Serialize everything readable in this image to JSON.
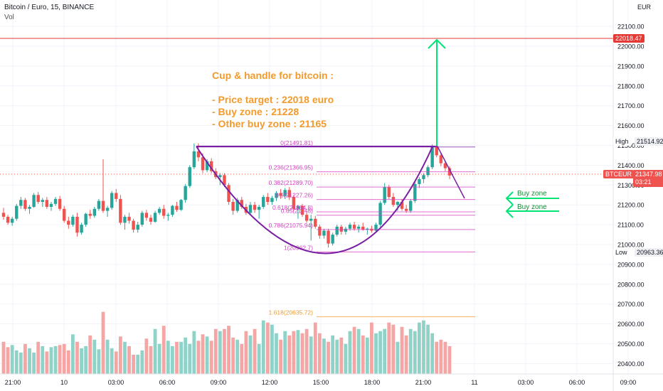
{
  "header": {
    "symbol_line": "Bitcoin / Euro, 15, BINANCE",
    "volume_label": "Vol"
  },
  "currency_label": "EUR",
  "note": {
    "title": "Cup & handle for bitcoin :",
    "lines": [
      "- Price target : 22018 euro",
      "- Buy zone : 21228",
      "- Other buy zone : 21165"
    ]
  },
  "price_tags": {
    "target": "22018.47",
    "high_label": "High",
    "high_value": "21514.92",
    "symbol": "BTCEUR",
    "last": "21347.98",
    "countdown": "03:21",
    "low_label": "Low",
    "low_value": "20963.36"
  },
  "annotations": {
    "buy_zone_1": "Buy zone",
    "buy_zone_2": "Buy zone"
  },
  "colors": {
    "up": "#26a69a",
    "down": "#ef5350",
    "vol_up": "#8fd3c8",
    "vol_down": "#f5a5a3",
    "fib": "#d63fc1",
    "fib_ext": "#f29b2c",
    "cup": "#7b1fa2",
    "target_line": "#e53935",
    "arrow": "#00e676"
  },
  "chart_data": {
    "type": "candlestick",
    "y_axis": {
      "ylim": [
        20350,
        22200
      ],
      "ticks": [
        20400,
        20500,
        20600,
        20700,
        20800,
        20900,
        21000,
        21100,
        21200,
        21300,
        21400,
        21500,
        21600,
        21700,
        21800,
        21900,
        22000,
        22100
      ],
      "tick_labels": [
        "20400.00",
        "20500.00",
        "20600.00",
        "20700.00",
        "20800.00",
        "20900.00",
        "21000.00",
        "21100.00",
        "21200.00",
        "21300.00",
        "21400.00",
        "21500.00",
        "21600.00",
        "21700.00",
        "21800.00",
        "21900.00",
        "22000.00",
        "22100.00"
      ]
    },
    "x_axis": {
      "tick_labels": [
        "21:00",
        "10",
        "03:00",
        "06:00",
        "09:00",
        "12:00",
        "15:00",
        "18:00",
        "21:00",
        "11",
        "03:00",
        "06:00",
        "09:00"
      ]
    },
    "fib_levels": [
      {
        "ratio": "0",
        "price": 21491.81,
        "label": "0(21491.81)"
      },
      {
        "ratio": "0.236",
        "price": 21366.95,
        "label": "0.236(21366.95)"
      },
      {
        "ratio": "0.382",
        "price": 21289.7,
        "label": "0.382(21289.70)"
      },
      {
        "ratio": "0.5",
        "price": 21227.26,
        "label": "0.5(21227.26)"
      },
      {
        "ratio": "0.618",
        "price": 21164.8,
        "label": "0.618(21164.8)"
      },
      {
        "ratio": "0.65",
        "price": 21148,
        "label": "0.65(21148)"
      },
      {
        "ratio": "0.786",
        "price": 21075.94,
        "label": "0.786(21075.94)"
      },
      {
        "ratio": "1",
        "price": 20962.7,
        "label": "1(20962.7)"
      },
      {
        "ratio": "1.618",
        "price": 20635.72,
        "label": "1.618(20635.72)"
      }
    ],
    "target_price": 22018.47,
    "high": 21514.92,
    "low": 20963.36,
    "last": 21347.98,
    "candles": [
      [
        21160,
        21185,
        21125,
        21140
      ],
      [
        21140,
        21150,
        21100,
        21110
      ],
      [
        21110,
        21140,
        21095,
        21130
      ],
      [
        21130,
        21205,
        21120,
        21195
      ],
      [
        21195,
        21240,
        21180,
        21225
      ],
      [
        21225,
        21235,
        21170,
        21180
      ],
      [
        21180,
        21200,
        21155,
        21190
      ],
      [
        21190,
        21260,
        21185,
        21250
      ],
      [
        21250,
        21265,
        21205,
        21215
      ],
      [
        21215,
        21235,
        21190,
        21225
      ],
      [
        21225,
        21240,
        21180,
        21190
      ],
      [
        21190,
        21215,
        21170,
        21205
      ],
      [
        21205,
        21240,
        21195,
        21230
      ],
      [
        21230,
        21245,
        21170,
        21180
      ],
      [
        21180,
        21195,
        21110,
        21120
      ],
      [
        21120,
        21140,
        21080,
        21100
      ],
      [
        21100,
        21150,
        21090,
        21140
      ],
      [
        21140,
        21160,
        21040,
        21060
      ],
      [
        21060,
        21110,
        21050,
        21100
      ],
      [
        21100,
        21160,
        21090,
        21155
      ],
      [
        21155,
        21175,
        21130,
        21145
      ],
      [
        21145,
        21190,
        21135,
        21180
      ],
      [
        21180,
        21230,
        21170,
        21220
      ],
      [
        21220,
        21430,
        21160,
        21170
      ],
      [
        21170,
        21195,
        21140,
        21185
      ],
      [
        21185,
        21270,
        21175,
        21260
      ],
      [
        21260,
        21280,
        21215,
        21230
      ],
      [
        21230,
        21250,
        21100,
        21110
      ],
      [
        21110,
        21150,
        21075,
        21140
      ],
      [
        21140,
        21160,
        21105,
        21120
      ],
      [
        21120,
        21130,
        21060,
        21075
      ],
      [
        21075,
        21115,
        21060,
        21100
      ],
      [
        21100,
        21170,
        21090,
        21160
      ],
      [
        21160,
        21175,
        21120,
        21135
      ],
      [
        21135,
        21150,
        21100,
        21115
      ],
      [
        21115,
        21170,
        21110,
        21160
      ],
      [
        21160,
        21190,
        21150,
        21180
      ],
      [
        21180,
        21200,
        21130,
        21145
      ],
      [
        21145,
        21160,
        21120,
        21150
      ],
      [
        21150,
        21200,
        21140,
        21195
      ],
      [
        21195,
        21215,
        21165,
        21175
      ],
      [
        21175,
        21230,
        21170,
        21225
      ],
      [
        21225,
        21305,
        21210,
        21295
      ],
      [
        21295,
        21400,
        21285,
        21390
      ],
      [
        21390,
        21510,
        21380,
        21470
      ],
      [
        21470,
        21510,
        21420,
        21440
      ],
      [
        21440,
        21460,
        21360,
        21375
      ],
      [
        21375,
        21430,
        21365,
        21420
      ],
      [
        21420,
        21435,
        21360,
        21370
      ],
      [
        21370,
        21385,
        21330,
        21340
      ],
      [
        21340,
        21360,
        21300,
        21350
      ],
      [
        21350,
        21360,
        21290,
        21300
      ],
      [
        21300,
        21310,
        21200,
        21215
      ],
      [
        21215,
        21230,
        21150,
        21170
      ],
      [
        21170,
        21235,
        21160,
        21225
      ],
      [
        21225,
        21240,
        21180,
        21190
      ],
      [
        21190,
        21205,
        21150,
        21160
      ],
      [
        21160,
        21215,
        21150,
        21200
      ],
      [
        21200,
        21215,
        21160,
        21175
      ],
      [
        21175,
        21200,
        21130,
        21190
      ],
      [
        21190,
        21250,
        21180,
        21240
      ],
      [
        21240,
        21260,
        21200,
        21215
      ],
      [
        21215,
        21245,
        21200,
        21235
      ],
      [
        21235,
        21270,
        21220,
        21260
      ],
      [
        21260,
        21280,
        21230,
        21245
      ],
      [
        21245,
        21285,
        21230,
        21275
      ],
      [
        21275,
        21290,
        21225,
        21240
      ],
      [
        21240,
        21250,
        21170,
        21180
      ],
      [
        21180,
        21200,
        21130,
        21195
      ],
      [
        21195,
        21205,
        21140,
        21150
      ],
      [
        21150,
        21170,
        21110,
        21120
      ],
      [
        21120,
        21150,
        21020,
        21130
      ],
      [
        21130,
        21145,
        21080,
        21090
      ],
      [
        21090,
        21100,
        21030,
        21045
      ],
      [
        21045,
        21080,
        21030,
        21070
      ],
      [
        21070,
        21080,
        20985,
        21005
      ],
      [
        21005,
        21060,
        20995,
        21050
      ],
      [
        21050,
        21100,
        21040,
        21090
      ],
      [
        21090,
        21100,
        21050,
        21065
      ],
      [
        21065,
        21090,
        21050,
        21080
      ],
      [
        21080,
        21110,
        21070,
        21100
      ],
      [
        21100,
        21115,
        21070,
        21080
      ],
      [
        21080,
        21100,
        21060,
        21090
      ],
      [
        21090,
        21110,
        21070,
        21075
      ],
      [
        21075,
        21085,
        21050,
        21080
      ],
      [
        21080,
        21095,
        21060,
        21070
      ],
      [
        21070,
        21110,
        21060,
        21100
      ],
      [
        21100,
        21220,
        21090,
        21210
      ],
      [
        21210,
        21310,
        21200,
        21290
      ],
      [
        21290,
        21300,
        21230,
        21240
      ],
      [
        21240,
        21260,
        21190,
        21200
      ],
      [
        21200,
        21220,
        21170,
        21215
      ],
      [
        21215,
        21230,
        21170,
        21180
      ],
      [
        21180,
        21200,
        21160,
        21170
      ],
      [
        21170,
        21230,
        21160,
        21220
      ],
      [
        21220,
        21320,
        21210,
        21305
      ],
      [
        21305,
        21340,
        21285,
        21330
      ],
      [
        21330,
        21360,
        21310,
        21350
      ],
      [
        21350,
        21400,
        21340,
        21390
      ],
      [
        21390,
        21505,
        21380,
        21495
      ],
      [
        21495,
        21510,
        21440,
        21450
      ],
      [
        21450,
        21460,
        21395,
        21410
      ],
      [
        21410,
        21420,
        21370,
        21385
      ],
      [
        21385,
        21395,
        21330,
        21348
      ]
    ],
    "volumes": [
      30,
      25,
      27,
      22,
      20,
      28,
      24,
      20,
      30,
      26,
      21,
      25,
      26,
      27,
      28,
      22,
      37,
      30,
      24,
      26,
      36,
      32,
      23,
      58,
      32,
      24,
      21,
      35,
      30,
      26,
      18,
      18,
      22,
      33,
      26,
      42,
      28,
      45,
      31,
      26,
      30,
      30,
      34,
      28,
      40,
      31,
      37,
      35,
      31,
      42,
      40,
      42,
      45,
      34,
      32,
      28,
      40,
      36,
      42,
      28,
      50,
      48,
      46,
      38,
      32,
      40,
      36,
      40,
      41,
      38,
      42,
      35,
      48,
      38,
      33,
      30,
      36,
      32,
      34,
      28,
      40,
      44,
      42,
      36,
      34,
      48,
      38,
      40,
      42,
      48,
      46,
      30,
      44,
      36,
      42,
      40,
      48,
      50,
      46,
      38,
      30,
      32,
      30,
      26
    ]
  }
}
